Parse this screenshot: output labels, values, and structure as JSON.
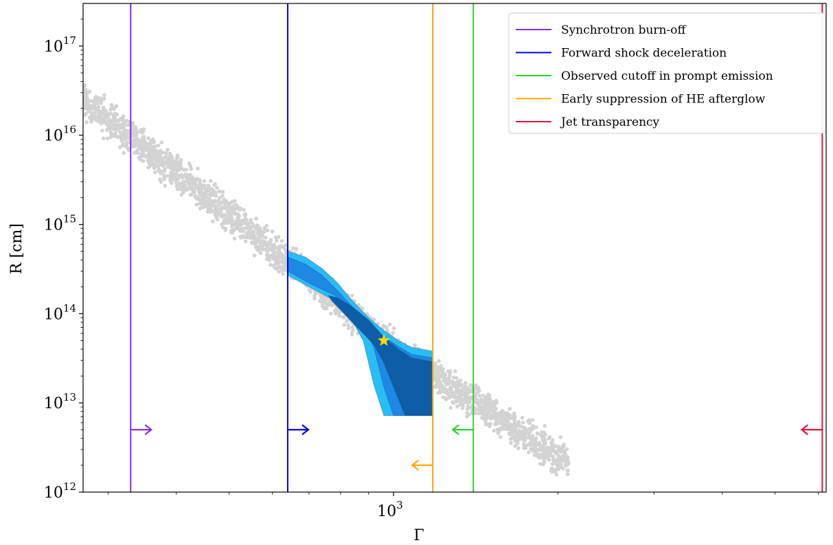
{
  "chart_data": {
    "type": "scatter",
    "xlabel": "Γ",
    "ylabel": "R [cm]",
    "xscale": "log",
    "yscale": "log",
    "xlim": [
      270,
      6200
    ],
    "ylim": [
      1000000000000.0,
      3e+17
    ],
    "x_ticks": [
      {
        "base": "10",
        "exp": "3",
        "value": 1000
      }
    ],
    "y_ticks": [
      {
        "base": "10",
        "exp": "12",
        "value": 1000000000000.0
      },
      {
        "base": "10",
        "exp": "13",
        "value": 10000000000000.0
      },
      {
        "base": "10",
        "exp": "14",
        "value": 100000000000000.0
      },
      {
        "base": "10",
        "exp": "15",
        "value": 1000000000000000.0
      },
      {
        "base": "10",
        "exp": "16",
        "value": 1e+16
      },
      {
        "base": "10",
        "exp": "17",
        "value": 1e+17
      }
    ],
    "grid": false,
    "legend_position": "top-right",
    "scatter_band": {
      "color": "#d3d3d3",
      "description_points": [
        {
          "x": 270,
          "y_center": 2.5e+16
        },
        {
          "x": 640,
          "y_center": 400000000000000.0
        },
        {
          "x": 1000,
          "y_center": 40000000000000.0
        },
        {
          "x": 2000,
          "y_center": 2500000000000.0
        }
      ]
    },
    "posterior_contours": [
      {
        "level": "outer",
        "color": "#29bdf7",
        "x": [
          640,
          690,
          740,
          790,
          840,
          900,
          960,
          1020,
          1080,
          1180,
          1180,
          960,
          920,
          880,
          830,
          780,
          700,
          640
        ],
        "y": [
          500000000000000.0,
          430000000000000.0,
          320000000000000.0,
          220000000000000.0,
          140000000000000.0,
          90000000000000.0,
          65000000000000.0,
          50000000000000.0,
          42000000000000.0,
          38000000000000.0,
          7200000000000.0,
          7200000000000.0,
          16000000000000.0,
          50000000000000.0,
          95000000000000.0,
          140000000000000.0,
          200000000000000.0,
          270000000000000.0
        ]
      },
      {
        "level": "middle",
        "color": "#1e88e5",
        "x": [
          640,
          690,
          740,
          790,
          840,
          900,
          960,
          1020,
          1080,
          1180,
          1180,
          1000,
          960,
          920,
          880,
          830,
          780,
          700,
          640
        ],
        "y": [
          430000000000000.0,
          360000000000000.0,
          270000000000000.0,
          180000000000000.0,
          120000000000000.0,
          80000000000000.0,
          55000000000000.0,
          43000000000000.0,
          35000000000000.0,
          32000000000000.0,
          7200000000000.0,
          7200000000000.0,
          15000000000000.0,
          42000000000000.0,
          75000000000000.0,
          110000000000000.0,
          160000000000000.0,
          220000000000000.0,
          300000000000000.0
        ]
      },
      {
        "level": "inner",
        "color": "#0d5ea6",
        "x": [
          760,
          790,
          840,
          900,
          960,
          1020,
          1080,
          1180,
          1180,
          1050,
          1000,
          960,
          920,
          880,
          840,
          800,
          770
        ],
        "y": [
          160000000000000.0,
          150000000000000.0,
          120000000000000.0,
          85000000000000.0,
          55000000000000.0,
          40000000000000.0,
          32000000000000.0,
          29000000000000.0,
          7200000000000.0,
          7200000000000.0,
          15000000000000.0,
          28000000000000.0,
          45000000000000.0,
          60000000000000.0,
          80000000000000.0,
          110000000000000.0,
          140000000000000.0
        ]
      }
    ],
    "best_fit": {
      "x": 960,
      "y": 50000000000000.0,
      "marker": "star",
      "color": "#ffd700"
    },
    "series": [
      {
        "name": "Synchrotron burn-off",
        "type": "vline",
        "x": 330,
        "color": "#8a2be2",
        "arrow": "right",
        "arrow_y": 5000000000000.0
      },
      {
        "name": "Forward shock deceleration",
        "type": "vline",
        "x": 640,
        "color": "#0000dd",
        "arrow": "right",
        "arrow_y": 5000000000000.0
      },
      {
        "name": "Observed cutoff in prompt emission",
        "type": "vline",
        "x": 1400,
        "color": "#32cd32",
        "arrow": "left",
        "arrow_y": 5000000000000.0
      },
      {
        "name": "Early suppression of HE afterglow",
        "type": "vline",
        "x": 1180,
        "color": "#ffa500",
        "arrow": "left",
        "arrow_y": 2000000000000.0
      },
      {
        "name": "Jet transparency",
        "type": "vline",
        "x": 6100,
        "color": "#dc143c",
        "arrow": "left",
        "arrow_y": 5000000000000.0
      }
    ]
  }
}
